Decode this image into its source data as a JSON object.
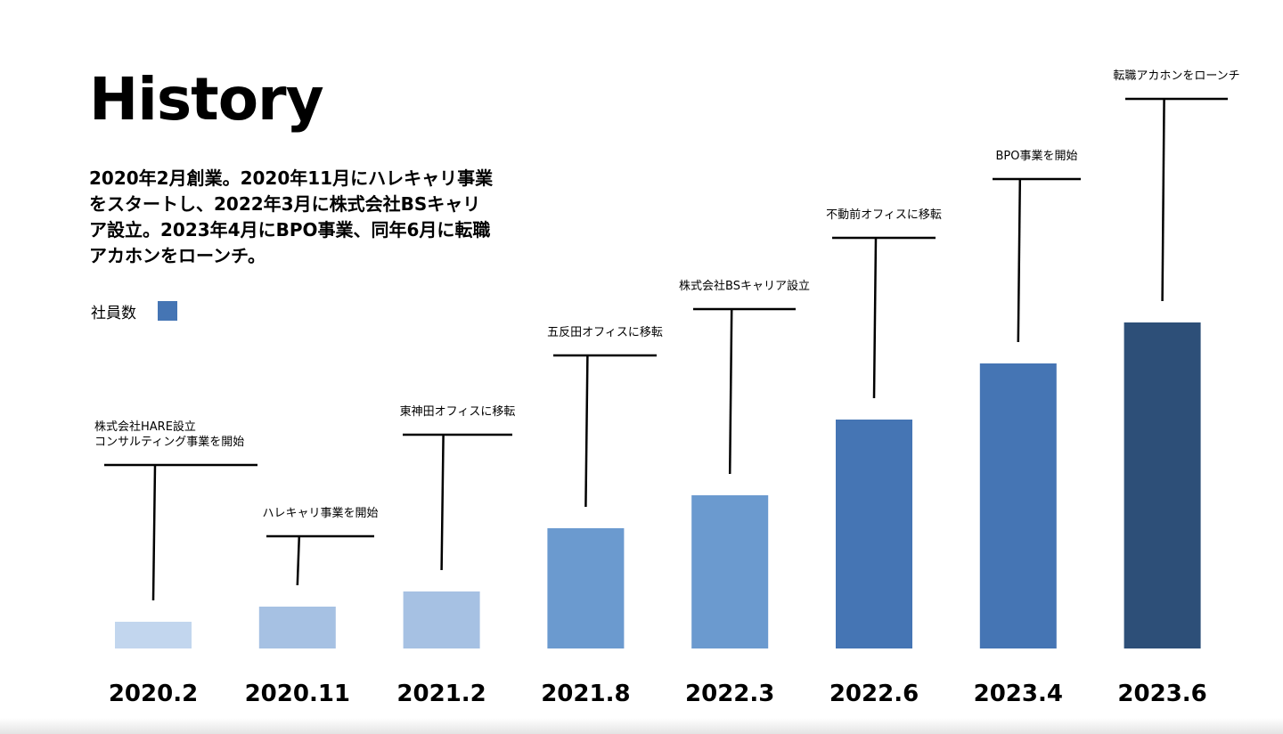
{
  "title": "History",
  "intro": {
    "lines": [
      "2020年2月創業。2020年11月にハレキャリ事業",
      "をスタートし、2022年3月に株式会社BSキャリ",
      "ア設立。2023年4月にBPO事業、同年6月に転職",
      "アカホンをローンチ。"
    ]
  },
  "legend": {
    "label": "社員数",
    "color": "#4575b4"
  },
  "chart_data": {
    "type": "bar",
    "categories": [
      "2020.2",
      "2020.11",
      "2021.2",
      "2021.8",
      "2022.3",
      "2022.6",
      "2023.4",
      "2023.6"
    ],
    "series": [
      {
        "values": [
          30,
          47,
          64,
          135,
          172,
          257,
          320,
          366
        ]
      }
    ],
    "bar_colors": [
      "#c2d6ee",
      "#a6c1e3",
      "#a6c1e3",
      "#6b9acf",
      "#6b9acf",
      "#4575b4",
      "#4575b4",
      "#2d4f78"
    ],
    "annotations": [
      {
        "category": "2020.2",
        "lines": [
          "株式会社HARE設立",
          "コンサルティング事業を開始"
        ]
      },
      {
        "category": "2020.11",
        "lines": [
          "ハレキャリ事業を開始"
        ]
      },
      {
        "category": "2021.2",
        "lines": [
          "東神田オフィスに移転"
        ]
      },
      {
        "category": "2021.8",
        "lines": [
          "五反田オフィスに移転"
        ]
      },
      {
        "category": "2022.3",
        "lines": [
          "株式会社BSキャリア設立"
        ]
      },
      {
        "category": "2022.6",
        "lines": [
          "不動前オフィスに移転"
        ]
      },
      {
        "category": "2023.4",
        "lines": [
          "BPO事業を開始"
        ]
      },
      {
        "category": "2023.6",
        "lines": [
          "転職アカホンをローンチ"
        ]
      }
    ],
    "xlabel": "",
    "ylabel": "",
    "grid": false,
    "y_axis_visible": false,
    "legend_position": "top-left"
  }
}
